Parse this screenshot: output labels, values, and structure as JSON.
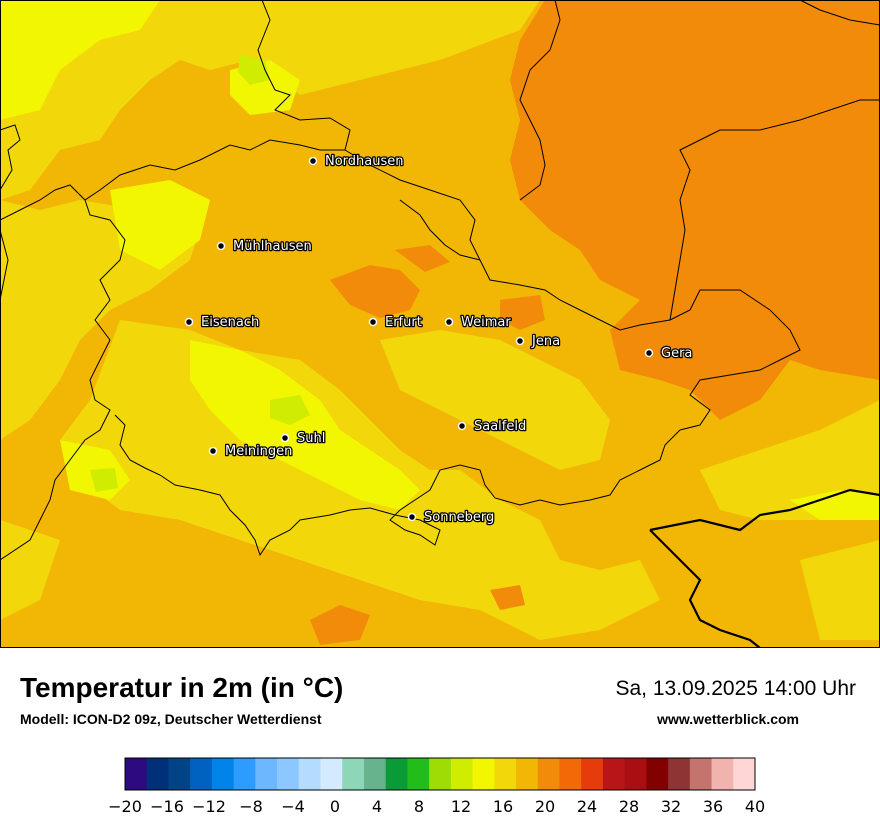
{
  "map": {
    "base_temperature_color": "#f2b705",
    "cities": [
      {
        "name": "Nordhausen"
      },
      {
        "name": "Mühlhausen"
      },
      {
        "name": "Eisenach"
      },
      {
        "name": "Erfurt"
      },
      {
        "name": "Weimar"
      },
      {
        "name": "Jena"
      },
      {
        "name": "Gera"
      },
      {
        "name": "Suhl"
      },
      {
        "name": "Meiningen"
      },
      {
        "name": "Saalfeld"
      },
      {
        "name": "Sonneberg"
      }
    ]
  },
  "footer": {
    "title": "Temperatur in 2m (in °C)",
    "subtitle": "Modell: ICON-D2 09z, Deutscher Wetterdienst",
    "datetime": "Sa, 13.09.2025 14:00 Uhr",
    "website": "www.wetterblick.com"
  },
  "colorbar": {
    "min": -20,
    "max": 40,
    "step": 2,
    "tick_labels": [
      "−20",
      "−16",
      "−12",
      "−8",
      "−4",
      "0",
      "4",
      "8",
      "12",
      "16",
      "20",
      "24",
      "28",
      "32",
      "36",
      "40"
    ],
    "colors": [
      "#2e0a80",
      "#00307a",
      "#004487",
      "#0062c0",
      "#0084ea",
      "#2e9bff",
      "#6cb7ff",
      "#8cc7ff",
      "#b4dcff",
      "#d4ebff",
      "#8ed6b8",
      "#66b38d",
      "#089b38",
      "#23bd19",
      "#9ddd05",
      "#d0ec00",
      "#f2f600",
      "#f2d70a",
      "#f2b705",
      "#f28a0a",
      "#f26a08",
      "#e63b0a",
      "#b81518",
      "#a80e12",
      "#820000",
      "#8e3434",
      "#c4736d",
      "#f0b3ad",
      "#ffd6d6"
    ]
  }
}
